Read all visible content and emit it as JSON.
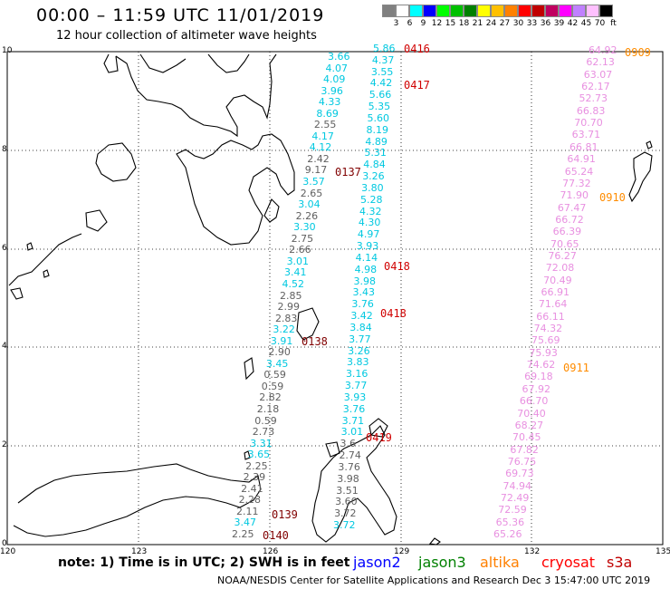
{
  "title": "00:00 – 11:59 UTC 11/01/2019",
  "subtitle": "12 hour collection of altimeter wave heights",
  "colorbar": {
    "colors": [
      "#808080",
      "#ffffff",
      "#00ffff",
      "#0000ff",
      "#00ff00",
      "#00c000",
      "#008000",
      "#ffff00",
      "#ffc000",
      "#ff8000",
      "#ff0000",
      "#c00000",
      "#c00060",
      "#ff00ff",
      "#c080ff",
      "#ffc0ff",
      "#000000"
    ],
    "labels": [
      "3",
      "6",
      "9",
      "12",
      "15",
      "18",
      "21",
      "24",
      "27",
      "30",
      "33",
      "36",
      "39",
      "42",
      "45",
      "70",
      "ft"
    ]
  },
  "axes": {
    "x_ticks": [
      "120",
      "123",
      "126",
      "129",
      "132",
      "135"
    ],
    "y_ticks": [
      "10",
      "8",
      "6",
      "4",
      "2",
      "0"
    ]
  },
  "tracks": {
    "cyan_a": [
      "3.66",
      "4.07",
      "4.09",
      "3.96",
      "4.33",
      "8.69",
      "2.55",
      "4.17",
      "4.12",
      "2.42",
      "9.17",
      "3.57",
      "2.65",
      "3.04",
      "2.26",
      "3.30",
      "2.75",
      "2.66",
      "3.01",
      "3.41",
      "4.52",
      "2.85",
      "2.99",
      "2.83",
      "3.22",
      "3.91",
      "2.90",
      "3.45",
      "0.59",
      "0.59",
      "2.82",
      "2.18",
      "0.59",
      "2.73",
      "3.31",
      "3.65",
      "2.25",
      "2.39",
      "2.41",
      "2.28",
      "2.11",
      "3.47",
      "2.25"
    ],
    "cyan_b": [
      "5.86",
      "4.37",
      "3.55",
      "4.42",
      "5.66",
      "5.35",
      "5.60",
      "8.19",
      "4.89",
      "5.31",
      "4.84",
      "3.26",
      "3.80",
      "5.28",
      "4.32",
      "4.30",
      "4.97",
      "3.93",
      "4.14",
      "4.98",
      "3.98",
      "3.43",
      "3.76",
      "3.42",
      "3.84",
      "3.77",
      "3.26",
      "3.83",
      "3.16",
      "3.77",
      "3.93",
      "3.76",
      "3.71",
      "3.01",
      "3.6",
      "2.74",
      "3.76",
      "3.98",
      "3.51",
      "3.60",
      "3.72",
      "3.72"
    ],
    "pink": [
      "64.92",
      "62.13",
      "63.07",
      "62.17",
      "52.73",
      "66.83",
      "70.70",
      "63.71",
      "66.81",
      "64.91",
      "65.24",
      "77.32",
      "71.90",
      "67.47",
      "66.72",
      "66.39",
      "70.65",
      "76.27",
      "72.08",
      "70.49",
      "66.91",
      "71.64",
      "66.11",
      "74.32",
      "75.69",
      "75.93",
      "74.62",
      "69.18",
      "67.92",
      "66.70",
      "70.40",
      "68.27",
      "70.45",
      "67.82",
      "76.75",
      "69.73",
      "74.94",
      "72.49",
      "72.59",
      "65.36",
      "65.26"
    ]
  },
  "time_labels": [
    "0416",
    "0417",
    "0137",
    "0418",
    "0418",
    "0138",
    "0419",
    "0139",
    "0140",
    "0909",
    "0910",
    "0911"
  ],
  "note": "note: 1) Time is in UTC; 2) SWH is in feet",
  "legend": [
    {
      "name": "jason2",
      "color": "#0000ff"
    },
    {
      "name": "jason3",
      "color": "#008000"
    },
    {
      "name": "altika",
      "color": "#ff8000"
    },
    {
      "name": "cryosat",
      "color": "#ff0000"
    },
    {
      "name": "s3a",
      "color": "#c00000"
    }
  ],
  "credit": "NOAA/NESDIS Center for Satellite Applications and Research    Dec  3 15:47:00 UTC 2019"
}
